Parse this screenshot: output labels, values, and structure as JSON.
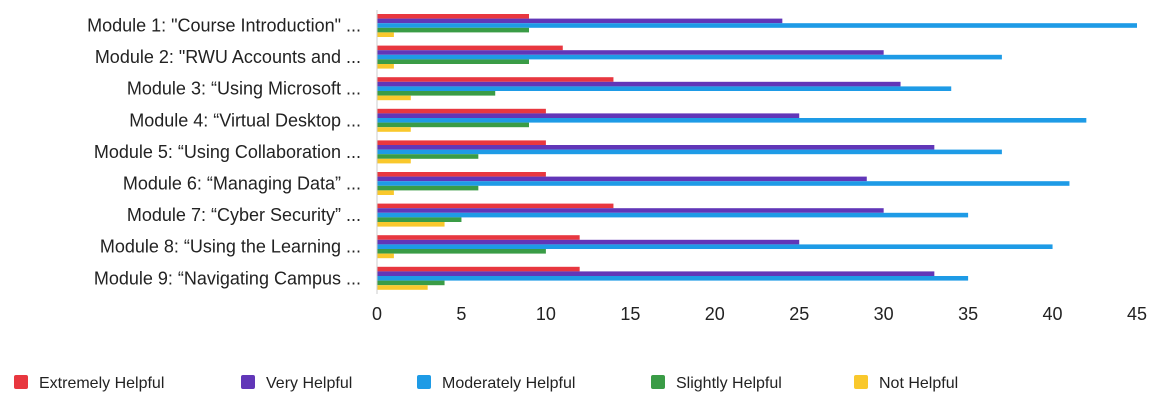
{
  "chart_data": {
    "type": "bar",
    "orientation": "horizontal",
    "categories": [
      "Module 1: \"Course Introduction\" ...",
      "Module 2: \"RWU Accounts and ...",
      "Module 3: “Using Microsoft ...",
      "Module 4: “Virtual Desktop ...",
      "Module 5: “Using Collaboration ...",
      "Module 6: “Managing Data” ...",
      "Module 7: “Cyber Security” ...",
      "Module 8: “Using the Learning ...",
      "Module 9: “Navigating Campus ..."
    ],
    "series": [
      {
        "name": "Extremely Helpful",
        "color": "#e8373f",
        "values": [
          9,
          11,
          14,
          10,
          10,
          10,
          14,
          12,
          12
        ]
      },
      {
        "name": "Very Helpful",
        "color": "#6136b8",
        "values": [
          24,
          30,
          31,
          25,
          33,
          29,
          30,
          25,
          33
        ]
      },
      {
        "name": "Moderately Helpful",
        "color": "#1e9be6",
        "values": [
          45,
          37,
          34,
          42,
          37,
          41,
          35,
          40,
          35
        ]
      },
      {
        "name": "Slightly Helpful",
        "color": "#3a9c46",
        "values": [
          9,
          9,
          7,
          9,
          6,
          6,
          5,
          10,
          4
        ]
      },
      {
        "name": "Not Helpful",
        "color": "#f9c82c",
        "values": [
          1,
          1,
          2,
          2,
          2,
          1,
          4,
          1,
          3
        ]
      }
    ],
    "xlim": [
      0,
      45
    ],
    "xticks": [
      0,
      5,
      10,
      15,
      20,
      25,
      30,
      35,
      40,
      45
    ],
    "grid": false,
    "legend": "bottom-left"
  }
}
